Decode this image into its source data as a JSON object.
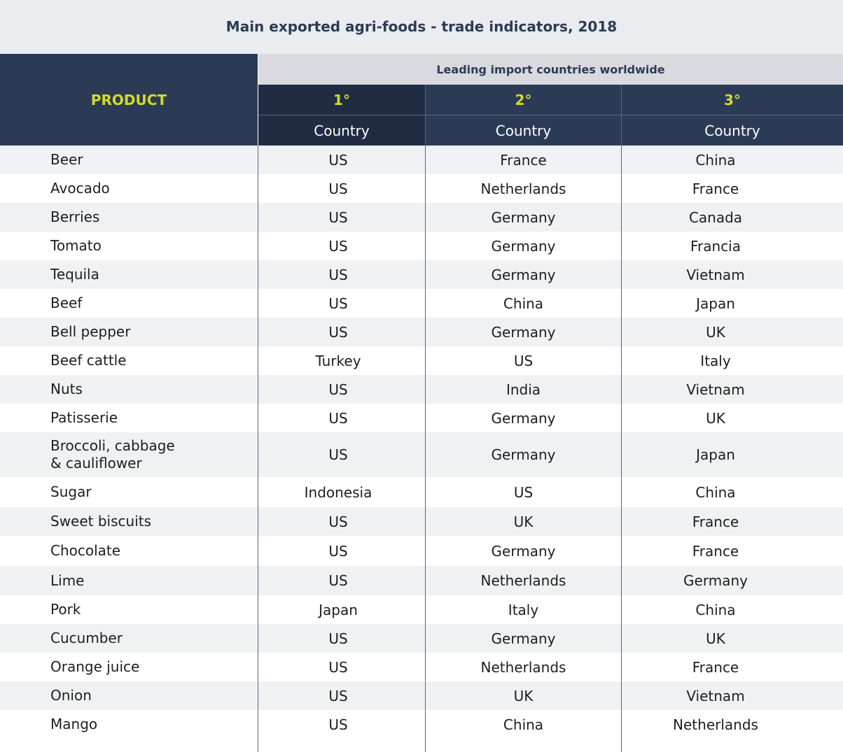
{
  "title": "Main exported agri-foods - trade indicators, 2018",
  "header": {
    "product": "PRODUCT",
    "leading": "Leading import countries worldwide",
    "ranks": [
      "1°",
      "2°",
      "3°"
    ],
    "sub": [
      "Country",
      "Country",
      "Country"
    ]
  },
  "rows": [
    {
      "product": "Beer",
      "c1": "US",
      "c2": "France",
      "c3": "China"
    },
    {
      "product": "Avocado",
      "c1": "US",
      "c2": "Netherlands",
      "c3": "France"
    },
    {
      "product": "Berries",
      "c1": "US",
      "c2": "Germany",
      "c3": "Canada"
    },
    {
      "product": "Tomato",
      "c1": "US",
      "c2": "Germany",
      "c3": "Francia"
    },
    {
      "product": "Tequila",
      "c1": "US",
      "c2": "Germany",
      "c3": "Vietnam"
    },
    {
      "product": "Beef",
      "c1": "US",
      "c2": "China",
      "c3": "Japan"
    },
    {
      "product": "Bell pepper",
      "c1": "US",
      "c2": "Germany",
      "c3": "UK"
    },
    {
      "product": "Beef cattle",
      "c1": "Turkey",
      "c2": "US",
      "c3": "Italy"
    },
    {
      "product": "Nuts",
      "c1": "US",
      "c2": "India",
      "c3": "Vietnam"
    },
    {
      "product": "Patisserie",
      "c1": "US",
      "c2": "Germany",
      "c3": "UK"
    },
    {
      "product": "Broccoli, cabbage\n & cauliflower",
      "c1": "US",
      "c2": "Germany",
      "c3": "Japan"
    },
    {
      "product": "Sugar",
      "c1": "Indonesia",
      "c2": "US",
      "c3": "China"
    },
    {
      "product": "Sweet biscuits",
      "c1": "US",
      "c2": "UK",
      "c3": "France"
    },
    {
      "product": "Chocolate",
      "c1": "US",
      "c2": "Germany",
      "c3": "France"
    },
    {
      "product": "Lime",
      "c1": "US",
      "c2": "Netherlands",
      "c3": "Germany"
    },
    {
      "product": "Pork",
      "c1": "Japan",
      "c2": "Italy",
      "c3": "China"
    },
    {
      "product": "Cucumber",
      "c1": "US",
      "c2": "Germany",
      "c3": "UK"
    },
    {
      "product": "Orange juice",
      "c1": "US",
      "c2": "Netherlands",
      "c3": "France"
    },
    {
      "product": "Onion",
      "c1": "US",
      "c2": "UK",
      "c3": "Vietnam"
    },
    {
      "product": "Mango",
      "c1": "US",
      "c2": "China",
      "c3": "Netherlands"
    }
  ]
}
